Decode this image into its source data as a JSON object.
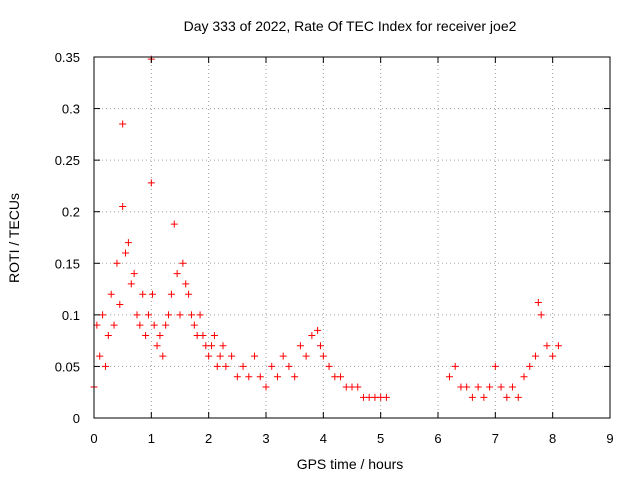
{
  "chart_data": {
    "type": "scatter",
    "title": "Day 333 of 2022, Rate Of TEC Index for receiver joe2",
    "xlabel": "GPS time / hours",
    "ylabel": "ROTI / TECUs",
    "xlim": [
      0,
      9
    ],
    "ylim": [
      0,
      0.35
    ],
    "xticks": [
      "0",
      "1",
      "2",
      "3",
      "4",
      "5",
      "6",
      "7",
      "8",
      "9"
    ],
    "yticks": [
      "0",
      "0.05",
      "0.1",
      "0.15",
      "0.2",
      "0.25",
      "0.3",
      "0.35"
    ],
    "grid": true,
    "marker": "+",
    "marker_color": "#ff0000",
    "series": [
      {
        "x": [
          0.0,
          0.05,
          0.1,
          0.15,
          0.2,
          0.25,
          0.3,
          0.35,
          0.4,
          0.45,
          0.5,
          0.5,
          0.55,
          0.6,
          0.65,
          0.7,
          0.75,
          0.8,
          0.85,
          0.9,
          0.95,
          1.0,
          1.0,
          1.02,
          1.05,
          1.1,
          1.15,
          1.2,
          1.25,
          1.3,
          1.35,
          1.4,
          1.45,
          1.5,
          1.55,
          1.6,
          1.65,
          1.7,
          1.75,
          1.8,
          1.85,
          1.9,
          1.95,
          2.0,
          2.05,
          2.1,
          2.15,
          2.2,
          2.25,
          2.3,
          2.4,
          2.5,
          2.6,
          2.7,
          2.8,
          2.9,
          3.0,
          3.1,
          3.2,
          3.3,
          3.4,
          3.5,
          3.6,
          3.7,
          3.8,
          3.9,
          3.95,
          4.0,
          4.1,
          4.2,
          4.3,
          4.4,
          4.5,
          4.6,
          4.7,
          4.8,
          4.9,
          5.0,
          5.1,
          6.2,
          6.3,
          6.4,
          6.5,
          6.6,
          6.7,
          6.8,
          6.9,
          7.0,
          7.1,
          7.2,
          7.3,
          7.4,
          7.5,
          7.6,
          7.7,
          7.75,
          7.8,
          7.9,
          8.0,
          8.1
        ],
        "y": [
          0.03,
          0.09,
          0.06,
          0.1,
          0.05,
          0.08,
          0.12,
          0.09,
          0.15,
          0.11,
          0.285,
          0.205,
          0.16,
          0.17,
          0.13,
          0.14,
          0.1,
          0.09,
          0.12,
          0.08,
          0.1,
          0.348,
          0.228,
          0.12,
          0.09,
          0.07,
          0.08,
          0.06,
          0.09,
          0.1,
          0.12,
          0.188,
          0.14,
          0.1,
          0.15,
          0.13,
          0.12,
          0.1,
          0.09,
          0.08,
          0.1,
          0.08,
          0.07,
          0.06,
          0.07,
          0.08,
          0.05,
          0.06,
          0.07,
          0.05,
          0.06,
          0.04,
          0.05,
          0.04,
          0.06,
          0.04,
          0.03,
          0.05,
          0.04,
          0.06,
          0.05,
          0.04,
          0.07,
          0.06,
          0.08,
          0.085,
          0.07,
          0.06,
          0.05,
          0.04,
          0.04,
          0.03,
          0.03,
          0.03,
          0.02,
          0.02,
          0.02,
          0.02,
          0.02,
          0.04,
          0.05,
          0.03,
          0.03,
          0.02,
          0.03,
          0.02,
          0.03,
          0.05,
          0.03,
          0.02,
          0.03,
          0.02,
          0.04,
          0.05,
          0.06,
          0.112,
          0.1,
          0.07,
          0.06,
          0.07
        ]
      }
    ]
  }
}
